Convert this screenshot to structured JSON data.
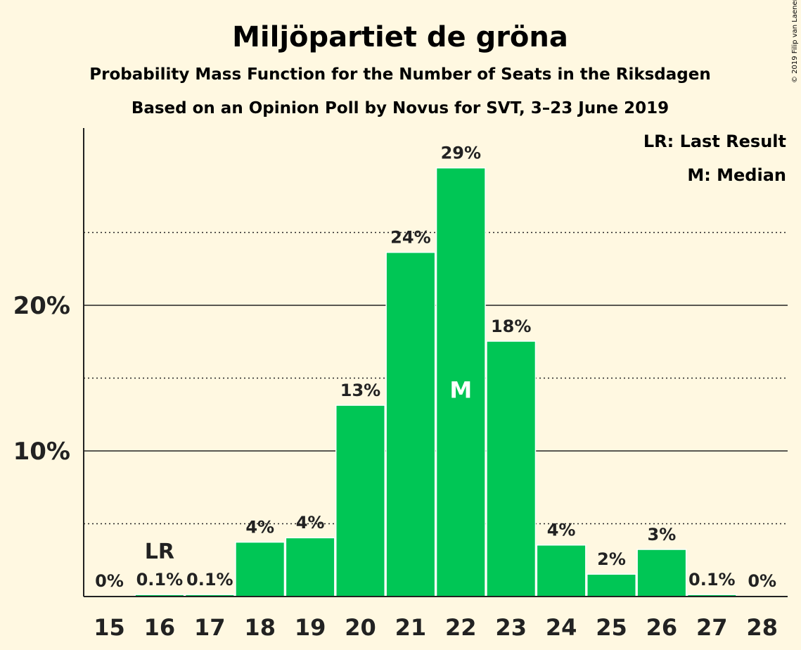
{
  "page": {
    "title": "Miljöpartiet de gröna",
    "subtitle1": "Probability Mass Function for the Number of Seats in the Riksdagen",
    "subtitle2": "Based on an Opinion Poll by Novus for SVT, 3–23 June 2019",
    "legend_lr": "LR: Last Result",
    "legend_m": "M: Median",
    "copyright": "© 2019 Filip van Laenen"
  },
  "colors": {
    "background": "#FFF8E1",
    "bar": "#00C655",
    "text": "#222222"
  },
  "chart_data": {
    "type": "bar",
    "categories": [
      "15",
      "16",
      "17",
      "18",
      "19",
      "20",
      "21",
      "22",
      "23",
      "24",
      "25",
      "26",
      "27",
      "28"
    ],
    "values": [
      0,
      0.1,
      0.1,
      3.7,
      4.0,
      13.1,
      23.6,
      29.4,
      17.5,
      3.5,
      1.5,
      3.2,
      0.1,
      0
    ],
    "labels": [
      "0%",
      "0.1%",
      "0.1%",
      "4%",
      "4%",
      "13%",
      "24%",
      "29%",
      "18%",
      "4%",
      "2%",
      "3%",
      "0.1%",
      "0%"
    ],
    "yticks": [
      10,
      20
    ],
    "ytick_labels": [
      "10%",
      "20%"
    ],
    "minor_gridlines": [
      5,
      15,
      25
    ],
    "ylim": [
      0,
      32
    ],
    "last_result_seat": "16",
    "last_result_marker": "LR",
    "median_seat": "22",
    "median_marker": "M",
    "legend_position": "top-right",
    "grid": true
  }
}
